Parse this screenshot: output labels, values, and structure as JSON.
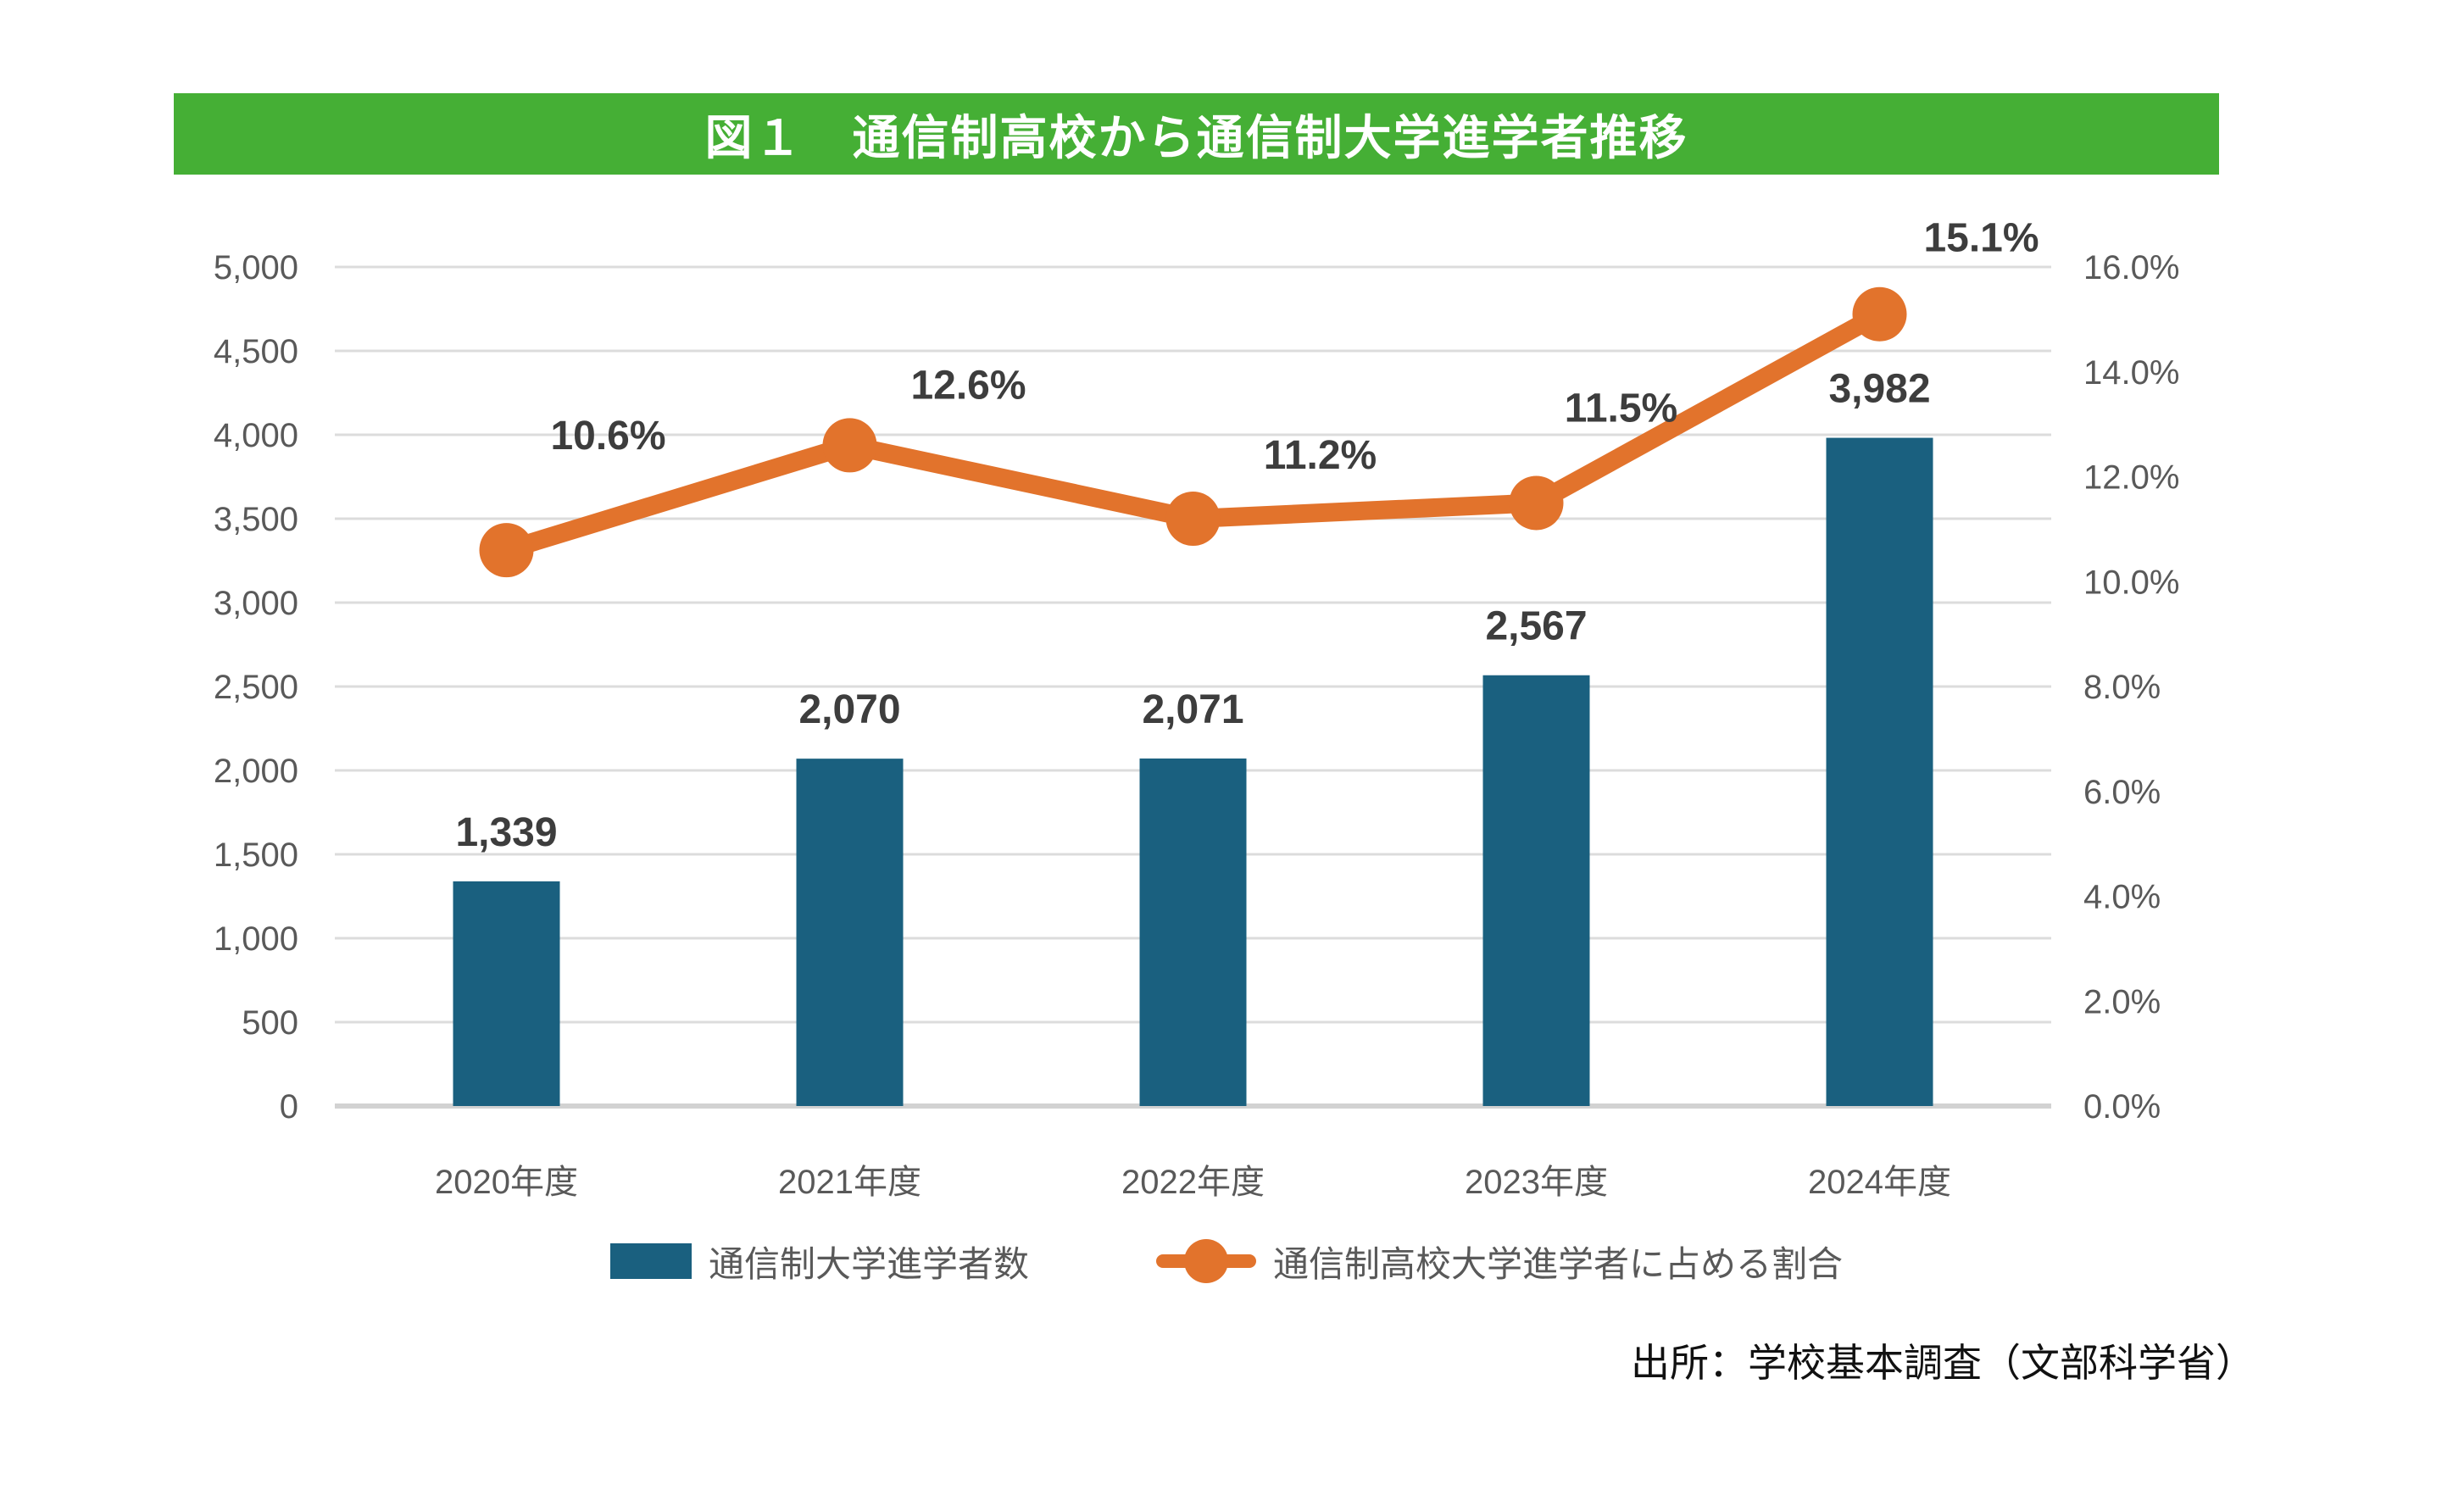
{
  "title": "図１　通信制高校から通信制大学進学者推移",
  "source": "出所：学校基本調査（文部科学省）",
  "colors": {
    "banner_green": "#45AF35",
    "bar_teal": "#1A607F",
    "line_orange": "#E2732C",
    "grid_line": "#DCDCDC",
    "baseline": "#D2D2D2",
    "axis_text": "#595959",
    "data_label": "#3D3D3D",
    "title_text": "#FFFFFF",
    "source_text": "#111111"
  },
  "legend": [
    {
      "label": "通信制大学進学者数",
      "type": "bar"
    },
    {
      "label": "通信制高校大学進学者に占める割合",
      "type": "line"
    }
  ],
  "chart_data": {
    "type": "bar+line",
    "categories": [
      "2020年度",
      "2021年度",
      "2022年度",
      "2023年度",
      "2024年度"
    ],
    "series": [
      {
        "name": "通信制大学進学者数",
        "type": "bar",
        "axis": "left",
        "values": [
          1339,
          2070,
          2071,
          2567,
          3982
        ],
        "labels": [
          "1,339",
          "2,070",
          "2,071",
          "2,567",
          "3,982"
        ]
      },
      {
        "name": "通信制高校大学進学者に占める割合",
        "type": "line",
        "axis": "right",
        "values": [
          10.6,
          12.6,
          11.2,
          11.5,
          15.1
        ],
        "labels": [
          "10.6%",
          "12.6%",
          "11.2%",
          "11.5%",
          "15.1%"
        ]
      }
    ],
    "left_axis": {
      "min": 0,
      "max": 5000,
      "step": 500,
      "tick_labels": [
        "5,000",
        "4,500",
        "4,000",
        "3,500",
        "3,000",
        "2,500",
        "2,000",
        "1,500",
        "1,000",
        "500",
        "0"
      ]
    },
    "right_axis": {
      "min": 0,
      "max": 16,
      "step": 2,
      "tick_labels": [
        "16.0%",
        "14.0%",
        "12.0%",
        "10.0%",
        "8.0%",
        "6.0%",
        "4.0%",
        "2.0%",
        "0.0%"
      ]
    },
    "grid": true,
    "legend_position": "bottom"
  }
}
